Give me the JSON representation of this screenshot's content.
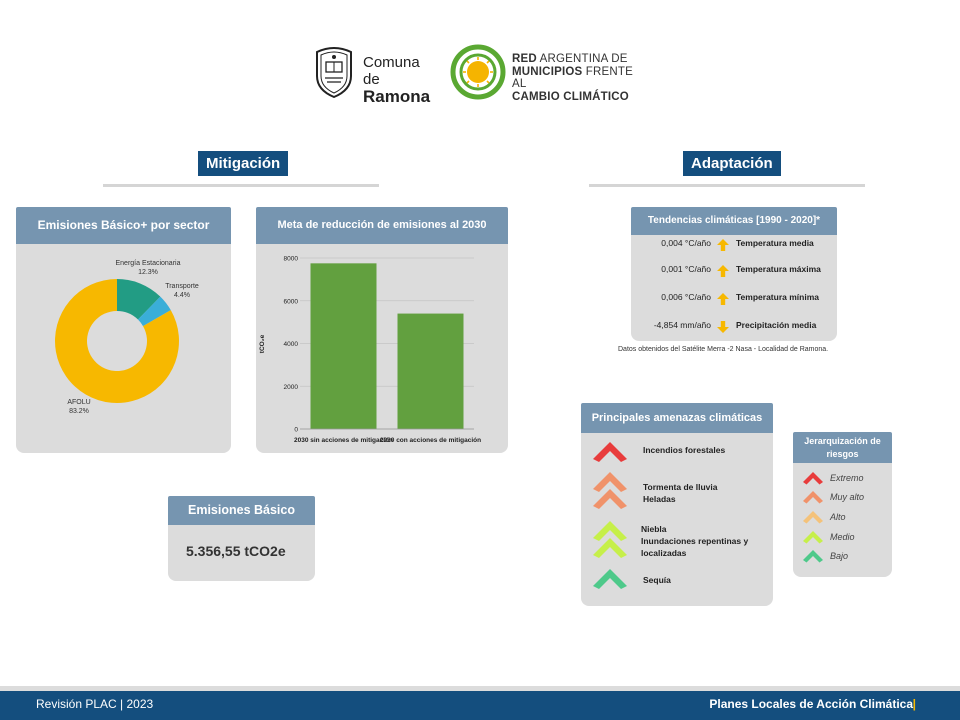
{
  "header": {
    "comuna_prefix": "Comuna de",
    "comuna_name": "Ramona",
    "red_line1_bold": "RED",
    "red_line1_rest": " ARGENTINA DE",
    "red_line2_bold": "MUNICIPIOS",
    "red_line2_rest": " FRENTE AL",
    "red_line3": "CAMBIO CLIMÁTICO"
  },
  "sections": {
    "mitigacion": "Mitigación",
    "adaptacion": "Adaptación"
  },
  "colors": {
    "navy": "#144e7e",
    "card_header": "#7695b0",
    "card_bg": "#dcdcdc",
    "bar": "#62a03f",
    "donut_energia": "#229c84",
    "donut_transporte": "#3aaed8",
    "donut_afolu": "#f7b800",
    "trend_icon": "#f7b800"
  },
  "emisiones_sector": {
    "title": "Emisiones Básico+ por sector",
    "labels": [
      {
        "name": "Energía Estacionaria",
        "value": "12.3%"
      },
      {
        "name": "Transporte",
        "value": "4.4%"
      },
      {
        "name": "AFOLU",
        "value": "83.2%"
      }
    ]
  },
  "meta": {
    "title": "Meta de reducción de emisiones al 2030",
    "ylabel": "tCO₂e",
    "y_ticks": [
      "8000",
      "6000",
      "4000",
      "2000",
      "0"
    ]
  },
  "chart_data": [
    {
      "type": "pie",
      "title": "Emisiones Básico+ por sector",
      "categories": [
        "Energía Estacionaria",
        "Transporte",
        "AFOLU"
      ],
      "values": [
        12.3,
        4.4,
        83.2
      ]
    },
    {
      "type": "bar",
      "title": "Meta de reducción de emisiones al 2030",
      "categories": [
        "2030 sin acciones de mitigación",
        "2030 con acciones de mitigación"
      ],
      "values": [
        7750,
        5400
      ],
      "ylabel": "tCO₂e",
      "ylim": [
        0,
        8000
      ],
      "grid": true
    }
  ],
  "emisiones_basico": {
    "title": "Emisiones Básico",
    "value": "5.356,55 tCO2e"
  },
  "tendencias": {
    "title": "Tendencias climáticas [1990 - 2020]*",
    "rows": [
      {
        "value": "0,004 °C/año",
        "name": "Temperatura media",
        "direction": "up"
      },
      {
        "value": "0,001 °C/año",
        "name": "Temperatura máxima",
        "direction": "up"
      },
      {
        "value": "0,006 °C/año",
        "name": "Temperatura mínima",
        "direction": "up"
      },
      {
        "value": "-4,854 mm/año",
        "name": "Precipitación media",
        "direction": "down"
      }
    ],
    "note": "Datos obtenidos del Satélite Merra -2 Nasa - Localidad de Ramona."
  },
  "amenazas": {
    "title": "Principales amenazas climáticas",
    "items": [
      {
        "level": "Extremo",
        "lines": [
          "Incendios forestales"
        ]
      },
      {
        "level": "Muy alto",
        "lines": [
          "Tormenta de lluvia",
          "Heladas"
        ]
      },
      {
        "level": "Medio",
        "lines": [
          "Niebla",
          "Inundaciones repentinas y",
          "localizadas"
        ]
      },
      {
        "level": "Bajo",
        "lines": [
          "Sequía"
        ]
      }
    ]
  },
  "jerarquizacion": {
    "title_line1": "Jerarquización de",
    "title_line2": "riesgos",
    "levels": [
      {
        "label": "Extremo",
        "color": "#e83c3c"
      },
      {
        "label": "Muy alto",
        "color": "#f0926a"
      },
      {
        "label": "Alto",
        "color": "#f4c27a"
      },
      {
        "label": "Medio",
        "color": "#c6ef4a"
      },
      {
        "label": "Bajo",
        "color": "#4ec98a"
      }
    ]
  },
  "footer": {
    "left": "Revisión PLAC | 2023",
    "right": "Planes Locales de Acción Climática",
    "right_bar": "|"
  }
}
